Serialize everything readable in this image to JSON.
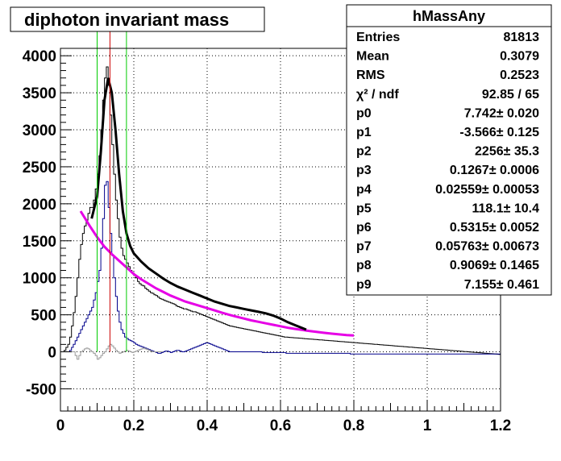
{
  "chart_data": {
    "type": "histogram",
    "title": "diphoton invariant mass",
    "xlim": [
      0,
      1.2
    ],
    "ylim": [
      -800,
      4100
    ],
    "grid": true,
    "x_ticks": [
      0,
      0.2,
      0.4,
      0.6,
      0.8,
      1,
      1.2
    ],
    "x_tick_labels": [
      "0",
      "0.2",
      "0.4",
      "0.6",
      "0.8",
      "1",
      "1.2"
    ],
    "y_ticks": [
      -500,
      0,
      500,
      1000,
      1500,
      2000,
      2500,
      3000,
      3500,
      4000
    ],
    "y_tick_labels": [
      "-500",
      "0",
      "500",
      "1000",
      "1500",
      "2000",
      "2500",
      "3000",
      "3500",
      "4000"
    ],
    "colors": {
      "main": "#000000",
      "subtracted": "#00008b",
      "residual": "#999999",
      "fit": "#000000",
      "background_fit": "#e600e6",
      "window_lines": "#00cc00",
      "peak_line": "#cc0000"
    },
    "vertical_lines": [
      {
        "x": 0.1,
        "color": "#00cc00"
      },
      {
        "x": 0.135,
        "color": "#cc0000"
      },
      {
        "x": 0.18,
        "color": "#00cc00"
      }
    ],
    "bin_width": 0.005,
    "series": [
      {
        "x_start": 0.0,
        "values": [
          0,
          0,
          20,
          60,
          100,
          200,
          350,
          530,
          750,
          1000,
          1250,
          1450,
          1600,
          1700,
          1780,
          1870,
          1950,
          1950,
          2050,
          2200,
          2400,
          2650,
          3000,
          3400,
          3700,
          3850,
          3600,
          3200,
          2800,
          2400,
          2050,
          1800,
          1550,
          1400,
          1300,
          1250,
          1200,
          1150,
          1100,
          1070,
          1030,
          1000,
          950,
          920,
          900,
          890,
          860,
          840,
          820,
          800,
          790,
          770,
          760,
          740,
          720,
          710,
          700,
          690,
          680,
          670,
          660,
          650,
          640,
          620,
          610,
          600,
          590,
          580,
          580,
          570,
          560,
          550,
          540,
          540,
          530,
          520,
          510,
          500,
          490,
          480,
          470,
          460,
          450,
          440,
          430,
          420,
          410,
          400,
          390,
          380,
          370,
          360,
          350,
          345,
          340,
          335,
          330,
          325,
          320,
          315,
          310,
          305,
          300,
          295,
          290,
          285,
          280,
          275,
          270,
          265,
          260,
          255,
          250,
          245,
          240,
          235,
          230,
          225,
          220,
          215,
          210,
          205,
          200,
          198,
          196,
          194,
          192,
          190,
          188,
          186,
          184,
          182,
          180,
          178,
          176,
          174,
          172,
          170,
          168,
          166,
          164,
          162,
          160,
          158,
          156,
          154,
          152,
          150,
          148,
          146,
          144,
          142,
          140,
          138,
          136,
          134,
          132,
          130,
          128,
          126,
          124,
          122,
          120,
          118,
          116,
          114,
          112,
          110,
          108,
          106,
          104,
          102,
          100,
          98,
          96,
          94,
          92,
          90,
          88,
          86,
          84,
          82,
          80,
          78,
          76,
          74,
          72,
          70,
          68,
          66,
          64,
          62,
          60,
          58,
          56,
          54,
          52,
          50,
          48,
          46,
          44,
          42,
          40,
          38,
          36,
          34,
          32,
          30,
          28,
          26,
          24,
          22,
          20,
          18,
          16,
          14,
          12,
          10,
          8,
          6,
          4,
          2,
          0,
          -2,
          -4,
          -6,
          -8,
          -10,
          -12,
          -14,
          -16,
          -18,
          -20,
          -22,
          -24,
          -26,
          -28,
          -30,
          -32,
          -34,
          -36
        ]
      },
      {
        "x_start": 0.0,
        "values": [
          0,
          0,
          0,
          0,
          0,
          20,
          60,
          100,
          150,
          200,
          250,
          300,
          350,
          400,
          450,
          500,
          550,
          600,
          700,
          800,
          950,
          1100,
          1400,
          1800,
          2250,
          2300,
          1950,
          1600,
          1300,
          1000,
          750,
          550,
          400,
          300,
          250,
          200,
          180,
          160,
          150,
          140,
          120,
          100,
          90,
          80,
          70,
          60,
          50,
          40,
          30,
          20,
          10,
          0,
          -10,
          -20,
          -20,
          -10,
          0,
          10,
          10,
          0,
          -10,
          0,
          10,
          20,
          20,
          10,
          0,
          0,
          10,
          20,
          30,
          40,
          50,
          60,
          70,
          80,
          90,
          100,
          110,
          120,
          120,
          110,
          100,
          90,
          80,
          70,
          60,
          50,
          40,
          30,
          20,
          10,
          0,
          0,
          0,
          0,
          0,
          0,
          0,
          0,
          0,
          0,
          0,
          0,
          0,
          0,
          0,
          0,
          0,
          0,
          -10,
          -10,
          -10,
          -10,
          -10,
          -10,
          -10,
          -10,
          -10,
          -10,
          -10,
          -10,
          -10,
          -20,
          -20,
          -20,
          -20,
          -20,
          -20,
          -20,
          -20,
          -20,
          -20,
          -20,
          -20,
          -20,
          -20,
          -20,
          -20,
          -20,
          -20,
          -20,
          -20,
          -20,
          -20,
          -20,
          -20,
          -20,
          -20,
          -20,
          -20,
          -20,
          -20,
          -20,
          -20,
          -20,
          -20,
          -20,
          -30,
          -30,
          -30,
          -30,
          -30,
          -30,
          -30,
          -30,
          -30,
          -30,
          -30,
          -30,
          -30,
          -30,
          -30,
          -30,
          -30,
          -30,
          -30,
          -30,
          -30,
          -30,
          -30,
          -30,
          -30,
          -30,
          -30,
          -30,
          -30,
          -30,
          -30,
          -30,
          -30,
          -30,
          -30,
          -30,
          -30,
          -30,
          -30,
          -30,
          -30,
          -30,
          -30,
          -30,
          -30,
          -30,
          -30,
          -30,
          -30,
          -30,
          -30,
          -30,
          -30,
          -30,
          -30,
          -30,
          -30,
          -30,
          -30,
          -30,
          -30,
          -30,
          -30,
          -30,
          -30,
          -30,
          -30,
          -30,
          -30,
          -30,
          -30,
          -30,
          -30,
          -30,
          -30,
          -30,
          -30,
          -30,
          -30,
          -30,
          -30,
          -30,
          -30,
          -30,
          -30,
          -30,
          -30,
          -30,
          -30,
          -30,
          -30,
          -30
        ]
      },
      {
        "x_start": 0.0,
        "values": [
          0,
          0,
          0,
          0,
          0,
          0,
          0,
          0,
          -50,
          -100,
          -50,
          0,
          20,
          40,
          50,
          40,
          20,
          0,
          -20,
          -50,
          -100,
          -80,
          -50,
          -20,
          0,
          40,
          80,
          100,
          80,
          50,
          20,
          0,
          -20,
          -10,
          0,
          10,
          20,
          10,
          0,
          -10,
          0,
          10,
          20,
          30,
          40,
          50,
          40,
          30,
          20,
          10,
          0,
          0,
          0,
          0,
          0,
          0
        ]
      }
    ],
    "fit_curve": {
      "x_range": [
        0.085,
        0.67
      ],
      "samples": [
        [
          0.085,
          1800
        ],
        [
          0.1,
          2100
        ],
        [
          0.11,
          2700
        ],
        [
          0.12,
          3400
        ],
        [
          0.13,
          3700
        ],
        [
          0.14,
          3500
        ],
        [
          0.15,
          3000
        ],
        [
          0.16,
          2400
        ],
        [
          0.17,
          1900
        ],
        [
          0.18,
          1600
        ],
        [
          0.19,
          1430
        ],
        [
          0.2,
          1330
        ],
        [
          0.22,
          1220
        ],
        [
          0.24,
          1130
        ],
        [
          0.26,
          1060
        ],
        [
          0.28,
          990
        ],
        [
          0.3,
          930
        ],
        [
          0.32,
          880
        ],
        [
          0.34,
          840
        ],
        [
          0.36,
          800
        ],
        [
          0.38,
          760
        ],
        [
          0.4,
          720
        ],
        [
          0.42,
          680
        ],
        [
          0.44,
          650
        ],
        [
          0.46,
          620
        ],
        [
          0.48,
          600
        ],
        [
          0.5,
          580
        ],
        [
          0.52,
          560
        ],
        [
          0.54,
          540
        ],
        [
          0.56,
          520
        ],
        [
          0.58,
          490
        ],
        [
          0.6,
          450
        ],
        [
          0.62,
          400
        ],
        [
          0.64,
          360
        ],
        [
          0.66,
          320
        ],
        [
          0.67,
          300
        ]
      ]
    },
    "background_fit": {
      "x_range": [
        0.055,
        0.8
      ],
      "samples": [
        [
          0.055,
          1900
        ],
        [
          0.08,
          1700
        ],
        [
          0.1,
          1550
        ],
        [
          0.12,
          1420
        ],
        [
          0.14,
          1320
        ],
        [
          0.16,
          1230
        ],
        [
          0.18,
          1140
        ],
        [
          0.2,
          1050
        ],
        [
          0.22,
          980
        ],
        [
          0.24,
          920
        ],
        [
          0.26,
          860
        ],
        [
          0.28,
          810
        ],
        [
          0.3,
          760
        ],
        [
          0.32,
          720
        ],
        [
          0.34,
          680
        ],
        [
          0.36,
          650
        ],
        [
          0.38,
          620
        ],
        [
          0.4,
          590
        ],
        [
          0.42,
          560
        ],
        [
          0.44,
          530
        ],
        [
          0.46,
          500
        ],
        [
          0.48,
          475
        ],
        [
          0.5,
          450
        ],
        [
          0.52,
          425
        ],
        [
          0.54,
          405
        ],
        [
          0.56,
          385
        ],
        [
          0.58,
          365
        ],
        [
          0.6,
          345
        ],
        [
          0.62,
          325
        ],
        [
          0.64,
          310
        ],
        [
          0.66,
          295
        ],
        [
          0.68,
          280
        ],
        [
          0.7,
          268
        ],
        [
          0.72,
          256
        ],
        [
          0.74,
          245
        ],
        [
          0.76,
          235
        ],
        [
          0.78,
          226
        ],
        [
          0.8,
          220
        ]
      ]
    },
    "stats_box": {
      "name": "hMassAny",
      "rows": [
        {
          "label": "Entries",
          "value": "81813"
        },
        {
          "label": "Mean",
          "value": "0.3079"
        },
        {
          "label": "RMS",
          "value": "0.2523"
        },
        {
          "label": "χ² / ndf",
          "value": "92.85 / 65"
        },
        {
          "label": "p0",
          "value": "7.742± 0.020"
        },
        {
          "label": "p1",
          "value": "-3.566± 0.125"
        },
        {
          "label": "p2",
          "value": "2256± 35.3"
        },
        {
          "label": "p3",
          "value": "0.1267± 0.0006"
        },
        {
          "label": "p4",
          "value": "0.02559± 0.00053"
        },
        {
          "label": "p5",
          "value": "118.1± 10.4"
        },
        {
          "label": "p6",
          "value": "0.5315± 0.0052"
        },
        {
          "label": "p7",
          "value": "0.05763± 0.00673"
        },
        {
          "label": "p8",
          "value": "0.9069± 0.1465"
        },
        {
          "label": "p9",
          "value": "7.155± 0.461"
        }
      ]
    }
  }
}
